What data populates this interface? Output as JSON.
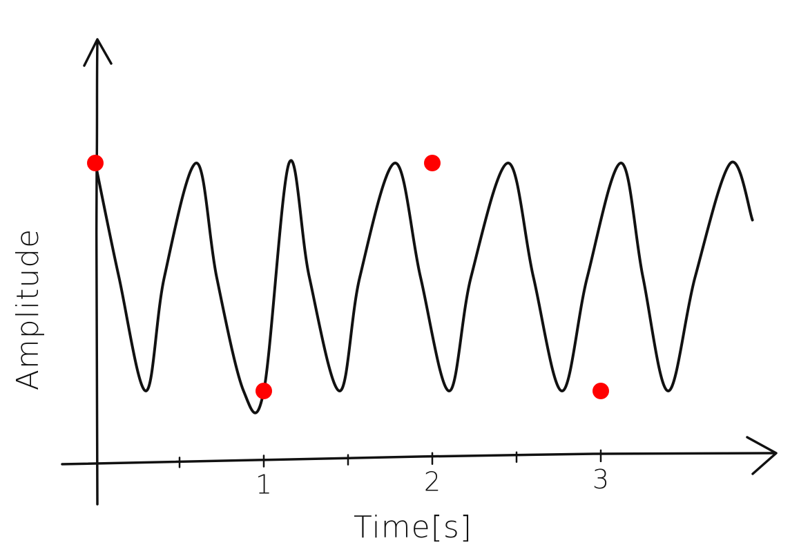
{
  "chart_data": {
    "type": "line",
    "title": "",
    "xlabel": "Time[s]",
    "ylabel": "Amplitude",
    "x_ticks": [
      {
        "value": 1,
        "label": "1"
      },
      {
        "value": 2,
        "label": "2"
      },
      {
        "value": 3,
        "label": "3"
      }
    ],
    "x_minor_ticks": [
      0.5,
      1.5,
      2.5
    ],
    "xlim": [
      0,
      4
    ],
    "ylim": [
      -1.6,
      2.2
    ],
    "grid": false,
    "line_color": "#111111",
    "highlight_color": "#ff0000",
    "series": [
      {
        "x": [
          0,
          0.14,
          0.3,
          0.41,
          0.6,
          0.72,
          0.88,
          1.0,
          1.15,
          1.27,
          1.45,
          1.57,
          1.78,
          1.93,
          2.1,
          2.23,
          2.45,
          2.6,
          2.77,
          2.92,
          3.12,
          3.25,
          3.4,
          3.56,
          3.77,
          3.9
        ],
        "y": [
          1.0,
          0.0,
          -1.0,
          0.0,
          1.0,
          0.0,
          -1.0,
          -1.0,
          1.0,
          0.0,
          -1.0,
          0.0,
          1.0,
          0.0,
          -1.0,
          0.0,
          1.0,
          0.0,
          -1.0,
          0.0,
          1.0,
          0.0,
          -1.0,
          0.0,
          1.0,
          0.5
        ]
      }
    ],
    "highlight_points": [
      {
        "x": 0.0,
        "y": 1.0
      },
      {
        "x": 1.0,
        "y": -1.0
      },
      {
        "x": 2.0,
        "y": 1.0
      },
      {
        "x": 3.0,
        "y": -1.0
      }
    ]
  }
}
